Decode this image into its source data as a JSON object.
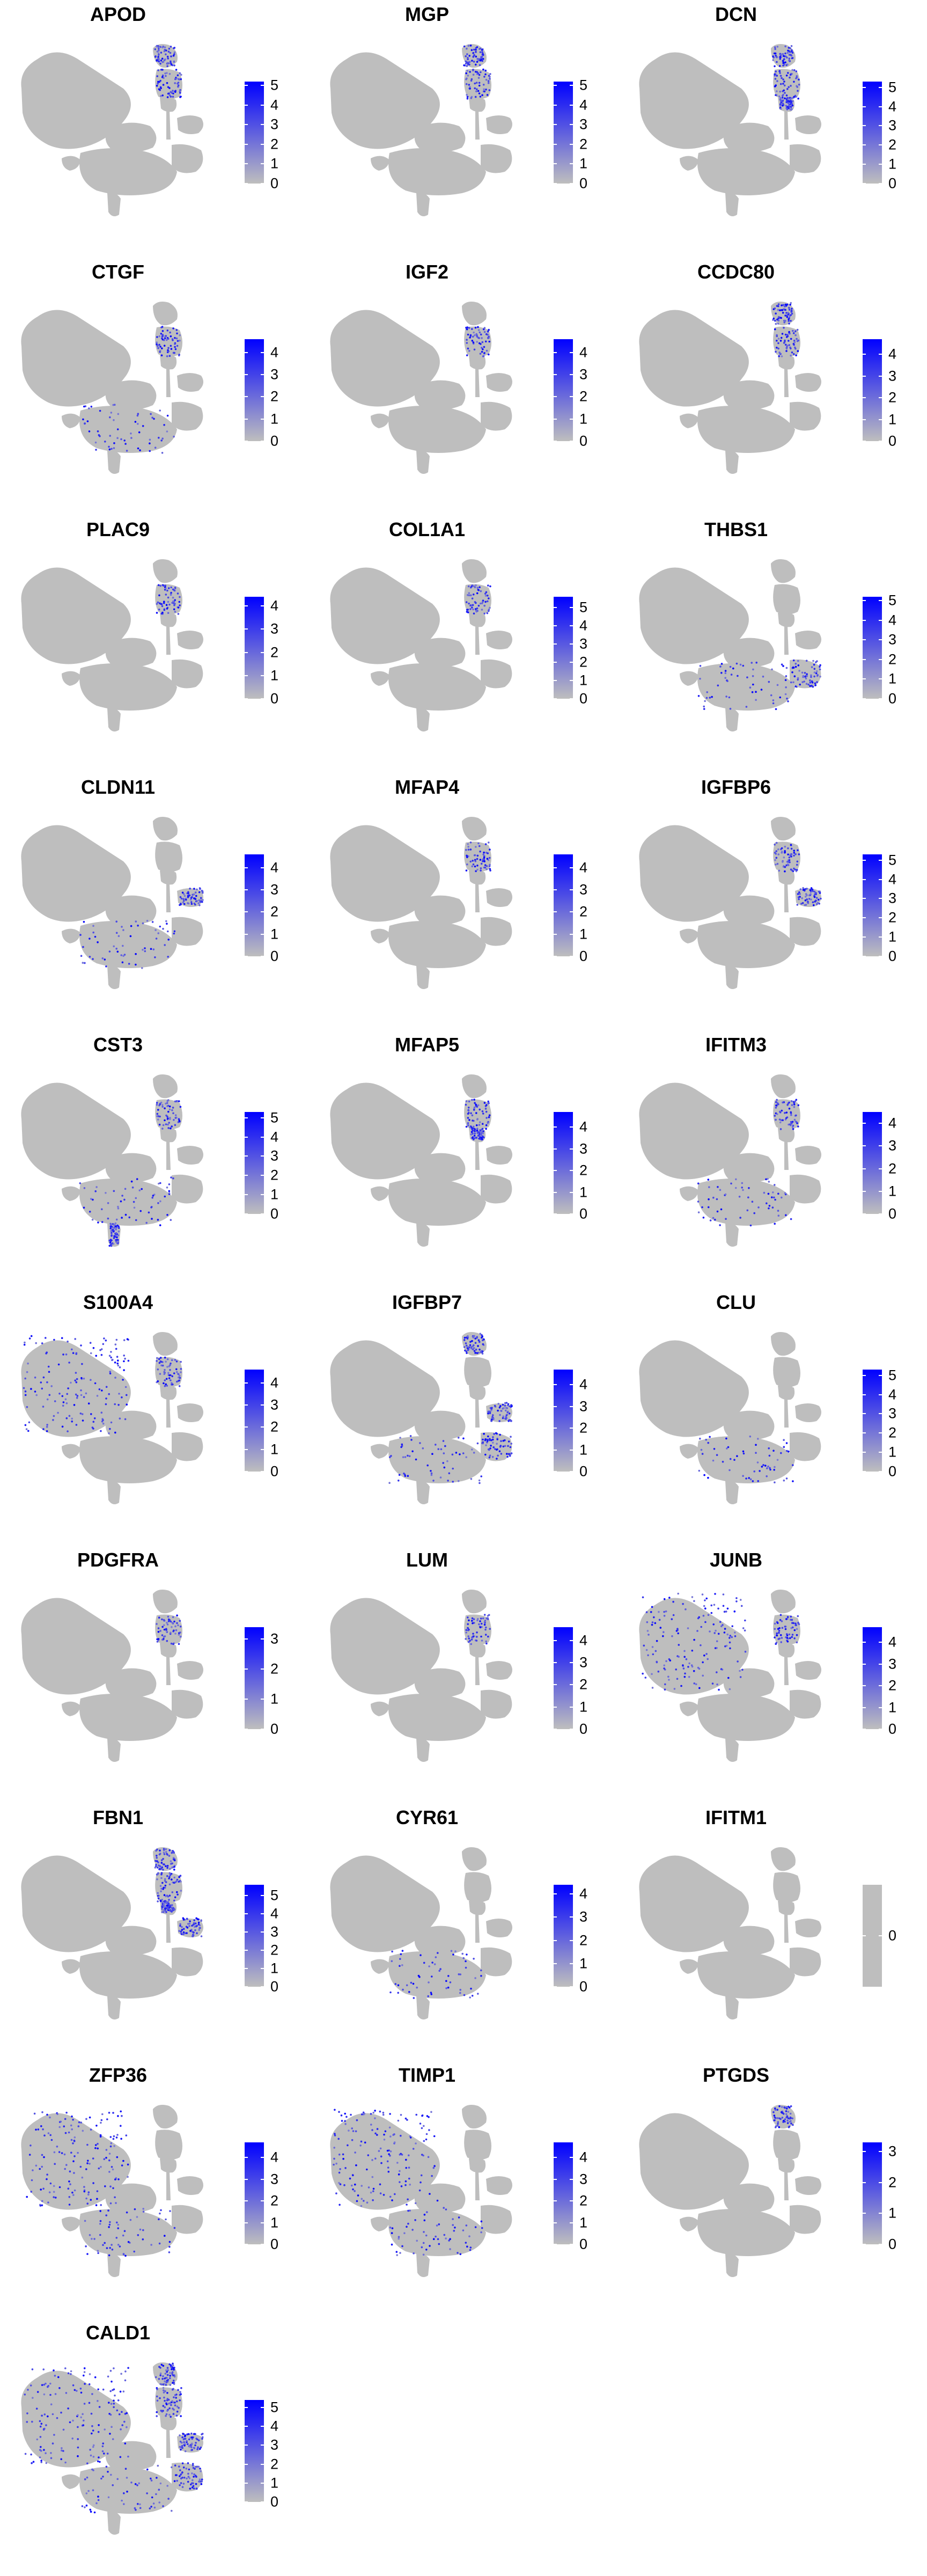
{
  "colors": {
    "low": "#bebebe",
    "high": "#0000ff",
    "background": "#ffffff"
  },
  "chart_data": [
    {
      "type": "scatter",
      "title": "APOD",
      "legend_ticks": [
        0,
        1,
        2,
        3,
        4,
        5
      ],
      "legend_max": 5.2,
      "color_low": "#bebebe",
      "color_high": "#0000ff",
      "highlight": [
        "fib_top",
        "fib_mid"
      ]
    },
    {
      "type": "scatter",
      "title": "MGP",
      "legend_ticks": [
        0,
        1,
        2,
        3,
        4,
        5
      ],
      "legend_max": 5.2,
      "color_low": "#bebebe",
      "color_high": "#0000ff",
      "highlight": [
        "fib_top",
        "fib_mid"
      ]
    },
    {
      "type": "scatter",
      "title": "DCN",
      "legend_ticks": [
        0,
        1,
        2,
        3,
        4,
        5
      ],
      "legend_max": 5.3,
      "color_low": "#bebebe",
      "color_high": "#0000ff",
      "highlight": [
        "fib_top",
        "fib_mid",
        "fib_low"
      ]
    },
    {
      "type": "scatter",
      "title": "CTGF",
      "legend_ticks": [
        0,
        1,
        2,
        3,
        4
      ],
      "legend_max": 4.6,
      "color_low": "#bebebe",
      "color_high": "#0000ff",
      "highlight": [
        "fib_mid",
        "center_lower"
      ]
    },
    {
      "type": "scatter",
      "title": "IGF2",
      "legend_ticks": [
        0,
        1,
        2,
        3,
        4
      ],
      "legend_max": 4.6,
      "color_low": "#bebebe",
      "color_high": "#0000ff",
      "highlight": [
        "fib_mid"
      ]
    },
    {
      "type": "scatter",
      "title": "CCDC80",
      "legend_ticks": [
        0,
        1,
        2,
        3,
        4
      ],
      "legend_max": 4.7,
      "color_low": "#bebebe",
      "color_high": "#0000ff",
      "highlight": [
        "fib_top",
        "fib_mid"
      ]
    },
    {
      "type": "scatter",
      "title": "PLAC9",
      "legend_ticks": [
        0,
        1,
        2,
        3,
        4
      ],
      "legend_max": 4.4,
      "color_low": "#bebebe",
      "color_high": "#0000ff",
      "highlight": [
        "fib_mid"
      ]
    },
    {
      "type": "scatter",
      "title": "COL1A1",
      "legend_ticks": [
        0,
        1,
        2,
        3,
        4,
        5
      ],
      "legend_max": 5.6,
      "color_low": "#bebebe",
      "color_high": "#0000ff",
      "highlight": [
        "fib_mid"
      ]
    },
    {
      "type": "scatter",
      "title": "THBS1",
      "legend_ticks": [
        0,
        1,
        2,
        3,
        4,
        5
      ],
      "legend_max": 5.2,
      "color_low": "#bebebe",
      "color_high": "#0000ff",
      "highlight": [
        "center_lower",
        "right_lower"
      ]
    },
    {
      "type": "scatter",
      "title": "CLDN11",
      "legend_ticks": [
        0,
        1,
        2,
        3,
        4
      ],
      "legend_max": 4.6,
      "color_low": "#bebebe",
      "color_high": "#0000ff",
      "highlight": [
        "right_blob",
        "center_lower"
      ]
    },
    {
      "type": "scatter",
      "title": "MFAP4",
      "legend_ticks": [
        0,
        1,
        2,
        3,
        4
      ],
      "legend_max": 4.6,
      "color_low": "#bebebe",
      "color_high": "#0000ff",
      "highlight": [
        "fib_mid"
      ]
    },
    {
      "type": "scatter",
      "title": "IGFBP6",
      "legend_ticks": [
        0,
        1,
        2,
        3,
        4,
        5
      ],
      "legend_max": 5.3,
      "color_low": "#bebebe",
      "color_high": "#0000ff",
      "highlight": [
        "fib_mid",
        "right_blob"
      ]
    },
    {
      "type": "scatter",
      "title": "CST3",
      "legend_ticks": [
        0,
        1,
        2,
        3,
        4,
        5
      ],
      "legend_max": 5.3,
      "color_low": "#bebebe",
      "color_high": "#0000ff",
      "highlight": [
        "fib_mid",
        "center_lower",
        "bottom_tail"
      ]
    },
    {
      "type": "scatter",
      "title": "MFAP5",
      "legend_ticks": [
        0,
        1,
        2,
        3,
        4
      ],
      "legend_max": 4.7,
      "color_low": "#bebebe",
      "color_high": "#0000ff",
      "highlight": [
        "fib_mid",
        "fib_low"
      ]
    },
    {
      "type": "scatter",
      "title": "IFITM3",
      "legend_ticks": [
        0,
        1,
        2,
        3,
        4
      ],
      "legend_max": 4.5,
      "color_low": "#bebebe",
      "color_high": "#0000ff",
      "highlight": [
        "fib_mid",
        "center_lower"
      ]
    },
    {
      "type": "scatter",
      "title": "S100A4",
      "legend_ticks": [
        0,
        1,
        2,
        3,
        4
      ],
      "legend_max": 4.6,
      "color_low": "#bebebe",
      "color_high": "#0000ff",
      "highlight": [
        "big_left",
        "fib_mid"
      ]
    },
    {
      "type": "scatter",
      "title": "IGFBP7",
      "legend_ticks": [
        0,
        1,
        2,
        3,
        4
      ],
      "legend_max": 4.7,
      "color_low": "#bebebe",
      "color_high": "#0000ff",
      "highlight": [
        "fib_top",
        "center_lower",
        "right_lower",
        "right_blob"
      ]
    },
    {
      "type": "scatter",
      "title": "CLU",
      "legend_ticks": [
        0,
        1,
        2,
        3,
        4,
        5
      ],
      "legend_max": 5.3,
      "color_low": "#bebebe",
      "color_high": "#0000ff",
      "highlight": [
        "center_lower"
      ]
    },
    {
      "type": "scatter",
      "title": "PDGFRA",
      "legend_ticks": [
        0,
        1,
        2,
        3
      ],
      "legend_max": 3.4,
      "color_low": "#bebebe",
      "color_high": "#0000ff",
      "highlight": [
        "fib_mid"
      ]
    },
    {
      "type": "scatter",
      "title": "LUM",
      "legend_ticks": [
        0,
        1,
        2,
        3,
        4
      ],
      "legend_max": 4.6,
      "color_low": "#bebebe",
      "color_high": "#0000ff",
      "highlight": [
        "fib_mid"
      ]
    },
    {
      "type": "scatter",
      "title": "JUNB",
      "legend_ticks": [
        0,
        1,
        2,
        3,
        4
      ],
      "legend_max": 4.7,
      "color_low": "#bebebe",
      "color_high": "#0000ff",
      "highlight": [
        "big_left",
        "fib_mid"
      ]
    },
    {
      "type": "scatter",
      "title": "FBN1",
      "legend_ticks": [
        0,
        1,
        2,
        3,
        4,
        5
      ],
      "legend_max": 5.6,
      "color_low": "#bebebe",
      "color_high": "#0000ff",
      "highlight": [
        "fib_top",
        "fib_mid",
        "fib_low",
        "right_blob"
      ]
    },
    {
      "type": "scatter",
      "title": "CYR61",
      "legend_ticks": [
        0,
        1,
        2,
        3,
        4
      ],
      "legend_max": 4.4,
      "color_low": "#bebebe",
      "color_high": "#0000ff",
      "highlight": [
        "center_lower"
      ]
    },
    {
      "type": "scatter",
      "title": "IFITM1",
      "legend_ticks": [
        0
      ],
      "legend_max": 0,
      "color_low": "#bebebe",
      "color_high": "#bebebe",
      "highlight": []
    },
    {
      "type": "scatter",
      "title": "ZFP36",
      "legend_ticks": [
        0,
        1,
        2,
        3,
        4
      ],
      "legend_max": 4.7,
      "color_low": "#bebebe",
      "color_high": "#0000ff",
      "highlight": [
        "big_left",
        "center_lower"
      ]
    },
    {
      "type": "scatter",
      "title": "TIMP1",
      "legend_ticks": [
        0,
        1,
        2,
        3,
        4
      ],
      "legend_max": 4.7,
      "color_low": "#bebebe",
      "color_high": "#0000ff",
      "highlight": [
        "big_left",
        "center_lower"
      ]
    },
    {
      "type": "scatter",
      "title": "PTGDS",
      "legend_ticks": [
        0,
        1,
        2,
        3
      ],
      "legend_max": 3.3,
      "color_low": "#bebebe",
      "color_high": "#0000ff",
      "highlight": [
        "fib_top"
      ]
    },
    {
      "type": "scatter",
      "title": "CALD1",
      "legend_ticks": [
        0,
        1,
        2,
        3,
        4,
        5
      ],
      "legend_max": 5.4,
      "color_low": "#bebebe",
      "color_high": "#0000ff",
      "highlight": [
        "fib_top",
        "fib_mid",
        "right_blob",
        "right_lower",
        "center_lower",
        "big_left"
      ]
    }
  ]
}
